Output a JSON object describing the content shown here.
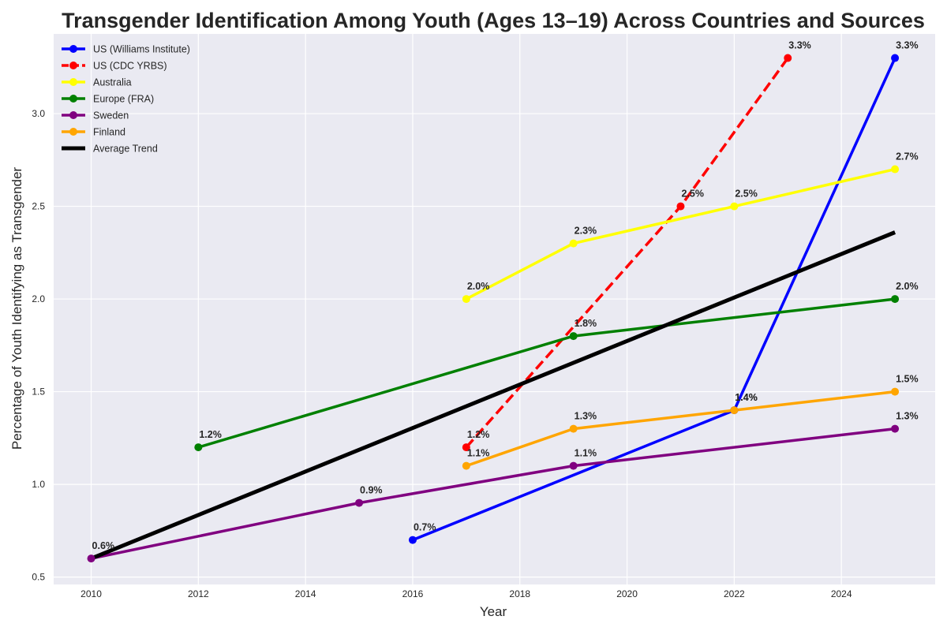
{
  "chart_data": {
    "type": "line",
    "title": "Transgender Identification Among Youth (Ages 13–19) Across Countries and Sources",
    "xlabel": "Year",
    "ylabel": "Percentage of Youth Identifying as Transgender",
    "xlim": [
      2009.3,
      2025.75
    ],
    "ylim": [
      0.46,
      3.43
    ],
    "x_ticks": [
      2010,
      2012,
      2014,
      2016,
      2018,
      2020,
      2022,
      2024
    ],
    "y_ticks": [
      0.5,
      1.0,
      1.5,
      2.0,
      2.5,
      3.0
    ],
    "grid": true,
    "background": "#eaeaf2",
    "legend_position": "top-left",
    "series": [
      {
        "name": "US (Williams Institute)",
        "color": "#0000ff",
        "dashed": false,
        "markers": true,
        "labels": true,
        "x": [
          2016,
          2022,
          2025
        ],
        "y": [
          0.7,
          1.4,
          3.3
        ]
      },
      {
        "name": "US (CDC YRBS)",
        "color": "#ff0000",
        "dashed": true,
        "markers": true,
        "labels": true,
        "x": [
          2017,
          2021,
          2023
        ],
        "y": [
          1.2,
          2.5,
          3.3
        ]
      },
      {
        "name": "Australia",
        "color": "#ffff00",
        "dashed": false,
        "markers": true,
        "labels": true,
        "x": [
          2017,
          2019,
          2022,
          2025
        ],
        "y": [
          2.0,
          2.3,
          2.5,
          2.7
        ]
      },
      {
        "name": "Europe (FRA)",
        "color": "#008000",
        "dashed": false,
        "markers": true,
        "labels": true,
        "x": [
          2012,
          2019,
          2025
        ],
        "y": [
          1.2,
          1.8,
          2.0
        ]
      },
      {
        "name": "Sweden",
        "color": "#800080",
        "dashed": false,
        "markers": true,
        "labels": true,
        "x": [
          2010,
          2015,
          2019,
          2025
        ],
        "y": [
          0.6,
          0.9,
          1.1,
          1.3
        ]
      },
      {
        "name": "Finland",
        "color": "#ffa500",
        "dashed": false,
        "markers": true,
        "labels": true,
        "x": [
          2017,
          2019,
          2022,
          2025
        ],
        "y": [
          1.1,
          1.3,
          1.4,
          1.5
        ]
      },
      {
        "name": "Average Trend",
        "color": "#000000",
        "dashed": false,
        "markers": false,
        "labels": false,
        "x": [
          2010,
          2025
        ],
        "y": [
          0.6,
          2.36
        ]
      }
    ]
  }
}
